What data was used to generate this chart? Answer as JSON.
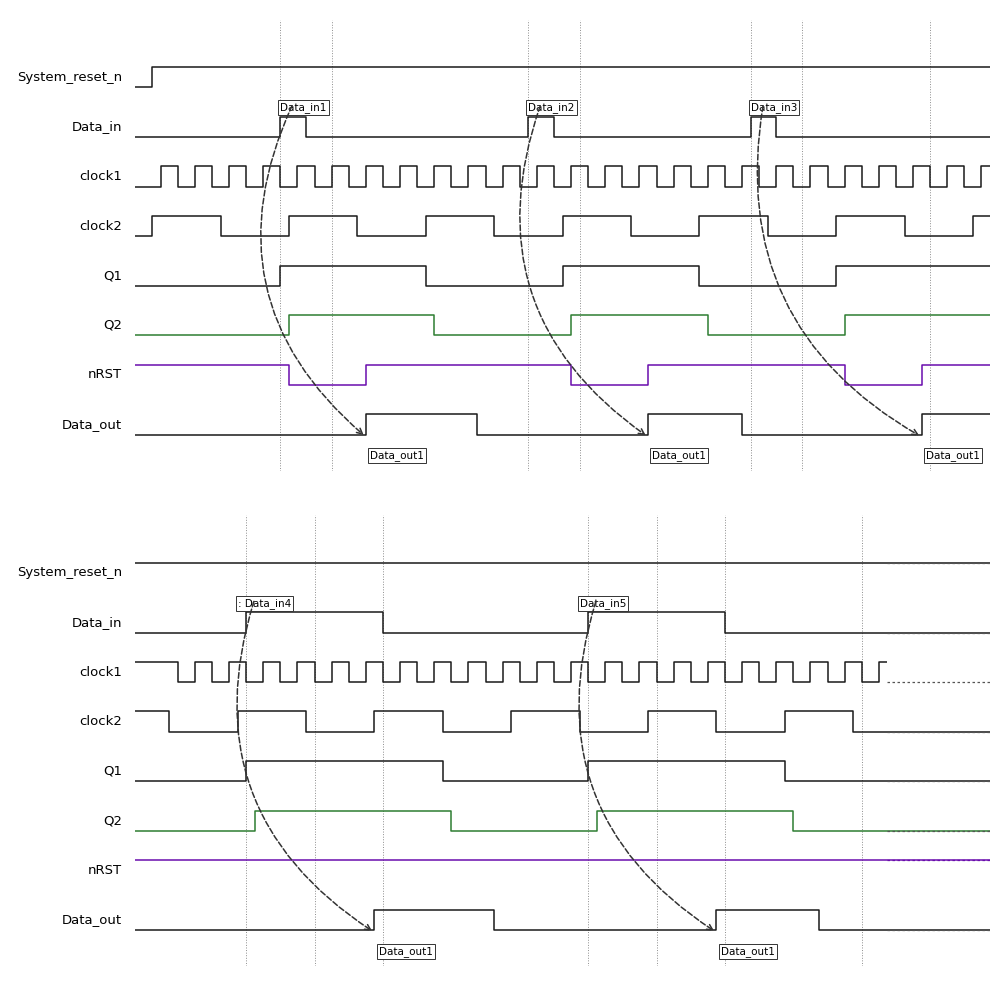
{
  "background_color": "#ffffff",
  "signal_labels_p1": [
    "System_reset_n",
    "Data_in",
    "clock1",
    "clock2",
    "Q1",
    "Q2",
    "nRST",
    "Data_out"
  ],
  "signal_labels_p2": [
    "System_reset_n",
    "Data_in",
    "clock1",
    "clock2",
    "Q1",
    "Q2",
    "nRST",
    "Data_out"
  ],
  "label_fontsize": 9.5,
  "annotation_fontsize": 7.5,
  "signal_color_default": "#1a1a1a",
  "signal_color_q2": "#2e7d32",
  "signal_color_nrst": "#6a0dad",
  "dotted_line_color": "#808080",
  "dashed_arrow_color": "#333333",
  "annotation_box_color": "#ffffff",
  "annotation_box_edge": "#333333",
  "p1_vlines": [
    17,
    23,
    46,
    52,
    72,
    78,
    93
  ],
  "p2_vlines": [
    13,
    21,
    29,
    53,
    61,
    69,
    85
  ]
}
